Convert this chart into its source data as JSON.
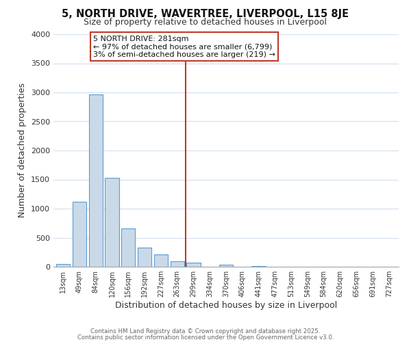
{
  "title": "5, NORTH DRIVE, WAVERTREE, LIVERPOOL, L15 8JE",
  "subtitle": "Size of property relative to detached houses in Liverpool",
  "xlabel": "Distribution of detached houses by size in Liverpool",
  "ylabel": "Number of detached properties",
  "bar_labels": [
    "13sqm",
    "49sqm",
    "84sqm",
    "120sqm",
    "156sqm",
    "192sqm",
    "227sqm",
    "263sqm",
    "299sqm",
    "334sqm",
    "370sqm",
    "406sqm",
    "441sqm",
    "477sqm",
    "513sqm",
    "549sqm",
    "584sqm",
    "620sqm",
    "656sqm",
    "691sqm",
    "727sqm"
  ],
  "bar_values": [
    50,
    1120,
    2960,
    1530,
    660,
    330,
    215,
    100,
    75,
    0,
    30,
    0,
    10,
    0,
    0,
    0,
    0,
    0,
    0,
    0,
    0
  ],
  "bar_color": "#c9d9e8",
  "bar_edgecolor": "#5b9bd5",
  "vline_x": 7.5,
  "vline_color": "#c0392b",
  "annotation_title": "5 NORTH DRIVE: 281sqm",
  "annotation_line1": "← 97% of detached houses are smaller (6,799)",
  "annotation_line2": "3% of semi-detached houses are larger (219) →",
  "annotation_box_edgecolor": "#c0392b",
  "background_color": "#ffffff",
  "grid_color": "#d8e4f0",
  "ylim": [
    0,
    4000
  ],
  "yticks": [
    0,
    500,
    1000,
    1500,
    2000,
    2500,
    3000,
    3500,
    4000
  ],
  "footer1": "Contains HM Land Registry data © Crown copyright and database right 2025.",
  "footer2": "Contains public sector information licensed under the Open Government Licence v3.0."
}
